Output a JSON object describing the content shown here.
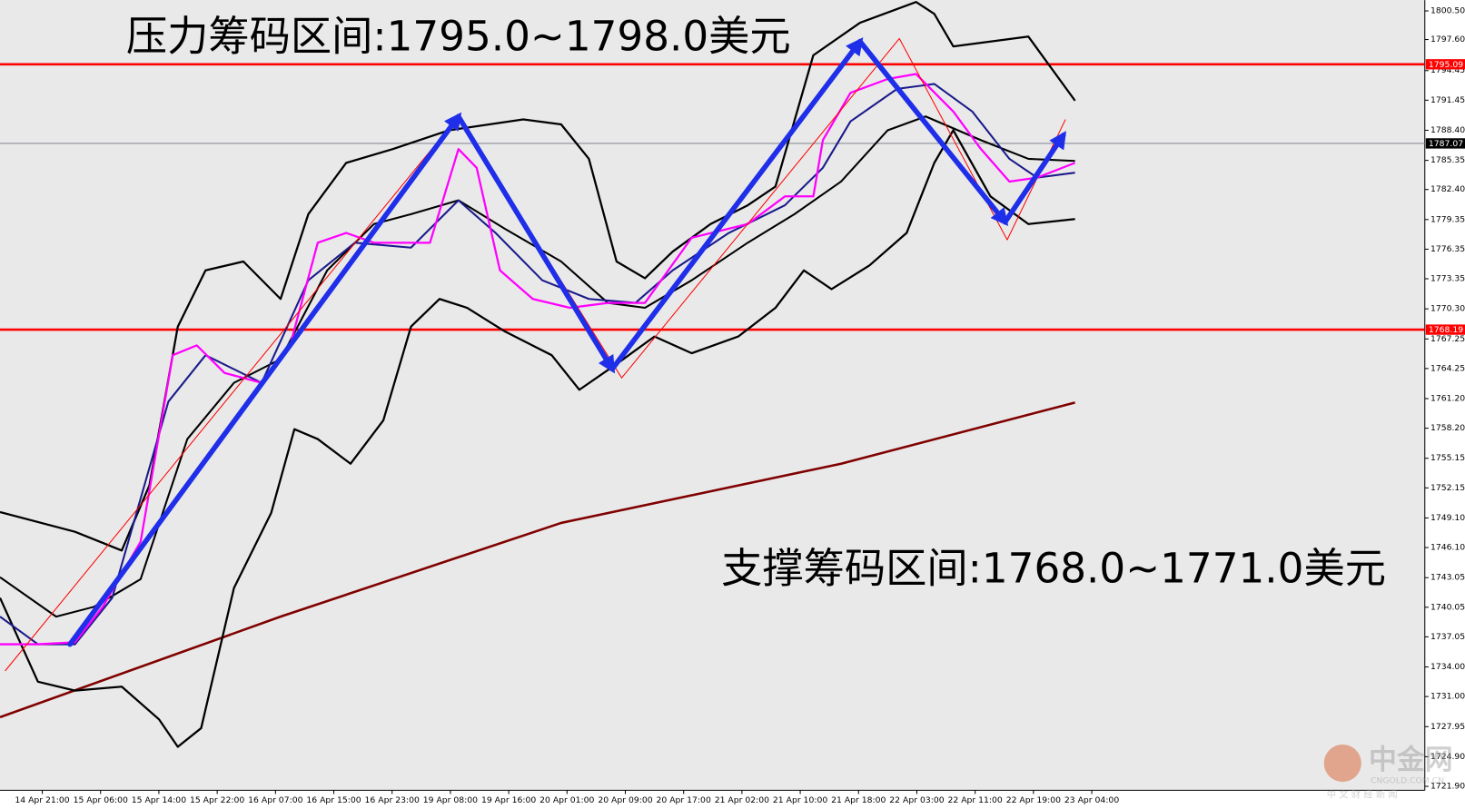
{
  "chart_data": {
    "type": "line",
    "annotations": [
      "压力筹码区间:1795.0~1798.0美元",
      "支撑筹码区间:1768.0~1771.0美元"
    ],
    "watermark": {
      "name": "中金网",
      "url": "CNGOLD.COM.CN",
      "tagline": "中 文 财 经 新 闻"
    },
    "xlim": [
      -5.8,
      189.7
    ],
    "ylim": [
      1721.5,
      1801.6
    ],
    "xticks": [
      {
        "value": 0,
        "label": "14 Apr 21:00"
      },
      {
        "value": 8,
        "label": "15 Apr 06:00"
      },
      {
        "value": 16,
        "label": "15 Apr 14:00"
      },
      {
        "value": 24,
        "label": "15 Apr 22:00"
      },
      {
        "value": 32,
        "label": "16 Apr 07:00"
      },
      {
        "value": 40,
        "label": "16 Apr 15:00"
      },
      {
        "value": 48,
        "label": "16 Apr 23:00"
      },
      {
        "value": 56,
        "label": "19 Apr 08:00"
      },
      {
        "value": 64,
        "label": "19 Apr 16:00"
      },
      {
        "value": 72,
        "label": "20 Apr 01:00"
      },
      {
        "value": 80,
        "label": "20 Apr 09:00"
      },
      {
        "value": 88,
        "label": "20 Apr 17:00"
      },
      {
        "value": 96,
        "label": "21 Apr 02:00"
      },
      {
        "value": 104,
        "label": "21 Apr 10:00"
      },
      {
        "value": 112,
        "label": "21 Apr 18:00"
      },
      {
        "value": 120,
        "label": "22 Apr 03:00"
      },
      {
        "value": 128,
        "label": "22 Apr 11:00"
      },
      {
        "value": 136,
        "label": "22 Apr 19:00"
      },
      {
        "value": 144,
        "label": "23 Apr 04:00"
      }
    ],
    "yticks": [
      {
        "value": 1800.5,
        "label": "1800.50"
      },
      {
        "value": 1797.6,
        "label": "1797.60"
      },
      {
        "value": 1794.45,
        "label": "1794.45"
      },
      {
        "value": 1791.45,
        "label": "1791.45"
      },
      {
        "value": 1788.4,
        "label": "1788.40"
      },
      {
        "value": 1785.35,
        "label": "1785.35"
      },
      {
        "value": 1782.4,
        "label": "1782.40"
      },
      {
        "value": 1779.35,
        "label": "1779.35"
      },
      {
        "value": 1776.35,
        "label": "1776.35"
      },
      {
        "value": 1773.35,
        "label": "1773.35"
      },
      {
        "value": 1770.3,
        "label": "1770.30"
      },
      {
        "value": 1767.25,
        "label": "1767.25"
      },
      {
        "value": 1764.25,
        "label": "1764.25"
      },
      {
        "value": 1761.2,
        "label": "1761.20"
      },
      {
        "value": 1758.2,
        "label": "1758.20"
      },
      {
        "value": 1755.15,
        "label": "1755.15"
      },
      {
        "value": 1752.15,
        "label": "1752.15"
      },
      {
        "value": 1749.1,
        "label": "1749.10"
      },
      {
        "value": 1746.1,
        "label": "1746.10"
      },
      {
        "value": 1743.05,
        "label": "1743.05"
      },
      {
        "value": 1740.05,
        "label": "1740.05"
      },
      {
        "value": 1737.05,
        "label": "1737.05"
      },
      {
        "value": 1734,
        "label": "1734.00"
      },
      {
        "value": 1731,
        "label": "1731.00"
      },
      {
        "value": 1727.95,
        "label": "1727.95"
      },
      {
        "value": 1724.9,
        "label": "1724.90"
      },
      {
        "value": 1721.9,
        "label": "1721.90"
      }
    ],
    "hlines": [
      1795.09,
      1787.07,
      1768.19
    ],
    "hline_colors": [
      "#ff0000",
      "#8a9099",
      "#ff0000"
    ],
    "hline_label_colors": [
      "#ff0000",
      "#000000",
      "#ff0000"
    ],
    "series": [
      {
        "color": "#800000",
        "width": 2.5,
        "x": [
          -5.8,
          32.7,
          71.2,
          109.6,
          141.7
        ],
        "values": [
          1728.9,
          1739.1,
          1748.6,
          1754.6,
          1760.8
        ]
      },
      {
        "color": "#000000",
        "width": 2.2,
        "x": [
          -5.8,
          4.5,
          10.9,
          14.7,
          18.6,
          22.4,
          27.6,
          32.7,
          36.5,
          41.7,
          48.1,
          55.8,
          66.0,
          71.2,
          75.0,
          78.8,
          82.7,
          86.5,
          91.7,
          96.8,
          100.6,
          105.8,
          112.2,
          119.9,
          122.4,
          125.0,
          130.1,
          135.3,
          141.7
        ],
        "values": [
          1749.7,
          1747.7,
          1745.8,
          1752.4,
          1768.5,
          1774.2,
          1775.1,
          1771.3,
          1779.9,
          1785.1,
          1786.5,
          1788.4,
          1789.5,
          1789.0,
          1785.5,
          1775.1,
          1773.4,
          1776.1,
          1778.9,
          1780.8,
          1782.7,
          1796.0,
          1799.3,
          1801.4,
          1800.2,
          1796.9,
          1797.4,
          1797.9,
          1791.4
        ]
      },
      {
        "color": "#000000",
        "width": 2.2,
        "x": [
          -5.8,
          -0.6,
          4.5,
          10.9,
          16.0,
          18.6,
          21.8,
          26.3,
          31.4,
          34.6,
          37.8,
          42.3,
          46.8,
          50.6,
          54.5,
          58.3,
          63.5,
          69.9,
          73.7,
          78.8,
          84.0,
          89.1,
          95.5,
          100.6,
          104.5,
          108.3,
          113.5,
          118.6,
          122.4,
          125.0,
          130.1,
          135.3,
          141.7
        ],
        "values": [
          1741.0,
          1732.5,
          1731.6,
          1732.0,
          1728.7,
          1725.9,
          1727.8,
          1742.0,
          1749.6,
          1758.1,
          1757.1,
          1754.6,
          1759.0,
          1768.5,
          1771.3,
          1770.4,
          1768.0,
          1765.6,
          1762.1,
          1764.7,
          1767.5,
          1765.8,
          1767.5,
          1770.4,
          1774.2,
          1772.3,
          1774.7,
          1778.0,
          1785.1,
          1788.4,
          1781.7,
          1778.9,
          1779.4
        ]
      },
      {
        "color": "#000000",
        "width": 2,
        "x": [
          -5.8,
          1.9,
          7.1,
          13.5,
          19.9,
          26.3,
          32.7,
          39.1,
          45.5,
          50.6,
          57.1,
          63.5,
          71.2,
          77.6,
          82.7,
          89.1,
          96.8,
          103.2,
          109.6,
          116.0,
          121.2,
          128.8,
          135.3,
          141.7
        ],
        "values": [
          1743.1,
          1739.1,
          1740.1,
          1742.9,
          1757.1,
          1762.8,
          1765.2,
          1774.2,
          1778.9,
          1779.9,
          1781.3,
          1778.4,
          1775.1,
          1770.9,
          1770.4,
          1773.2,
          1777.0,
          1779.9,
          1783.2,
          1788.4,
          1789.8,
          1787.4,
          1785.5,
          1785.3
        ]
      },
      {
        "color": "#1a1a8c",
        "width": 2,
        "x": [
          -5.8,
          -0.6,
          4.5,
          9.6,
          17.3,
          22.4,
          30.1,
          36.5,
          42.9,
          50.6,
          57.1,
          62.2,
          68.6,
          75.0,
          81.4,
          86.5,
          94.2,
          101.9,
          107.1,
          110.9,
          117.3,
          122.4,
          127.6,
          132.7,
          136.5,
          141.7
        ],
        "values": [
          1739.1,
          1736.3,
          1736.3,
          1741.0,
          1760.9,
          1765.6,
          1762.8,
          1773.2,
          1777.0,
          1776.5,
          1781.3,
          1778.0,
          1773.2,
          1771.3,
          1770.9,
          1774.2,
          1778.0,
          1780.8,
          1784.6,
          1789.3,
          1792.6,
          1793.1,
          1790.3,
          1785.5,
          1783.6,
          1784.1
        ]
      },
      {
        "color": "#ff00ff",
        "width": 2.2,
        "x": [
          -5.8,
          -0.6,
          4.5,
          8.3,
          13.5,
          17.9,
          21.2,
          25.0,
          30.1,
          34.0,
          37.8,
          41.7,
          45.5,
          53.2,
          57.1,
          59.6,
          62.8,
          67.3,
          72.4,
          77.6,
          82.7,
          89.1,
          96.8,
          101.9,
          105.8,
          107.1,
          110.9,
          116.0,
          119.9,
          125.0,
          128.8,
          132.7,
          136.5,
          141.7
        ],
        "values": [
          1736.3,
          1736.3,
          1736.5,
          1740.1,
          1746.7,
          1765.6,
          1766.6,
          1763.8,
          1762.8,
          1766.6,
          1777.0,
          1778.0,
          1777.0,
          1777.0,
          1786.5,
          1784.6,
          1774.2,
          1771.3,
          1770.4,
          1770.9,
          1770.9,
          1777.5,
          1778.9,
          1781.7,
          1781.7,
          1787.4,
          1792.2,
          1793.6,
          1794.1,
          1790.3,
          1786.5,
          1783.2,
          1783.6,
          1785.1
        ]
      },
      {
        "color": "#ff0000",
        "width": 1,
        "x": [
          -5.1,
          57.1,
          79.5,
          117.6,
          132.4,
          140.4
        ],
        "values": [
          1733.6,
          1789.8,
          1763.3,
          1797.7,
          1777.3,
          1789.5
        ]
      },
      {
        "color": "#1f2ee8",
        "width": 5.5,
        "arrows": true,
        "x": [
          3.8,
          57.1,
          78.2,
          112.2,
          132.1,
          140.1
        ],
        "values": [
          1736.3,
          1789.8,
          1764.2,
          1797.4,
          1779.1,
          1787.9
        ]
      }
    ]
  }
}
